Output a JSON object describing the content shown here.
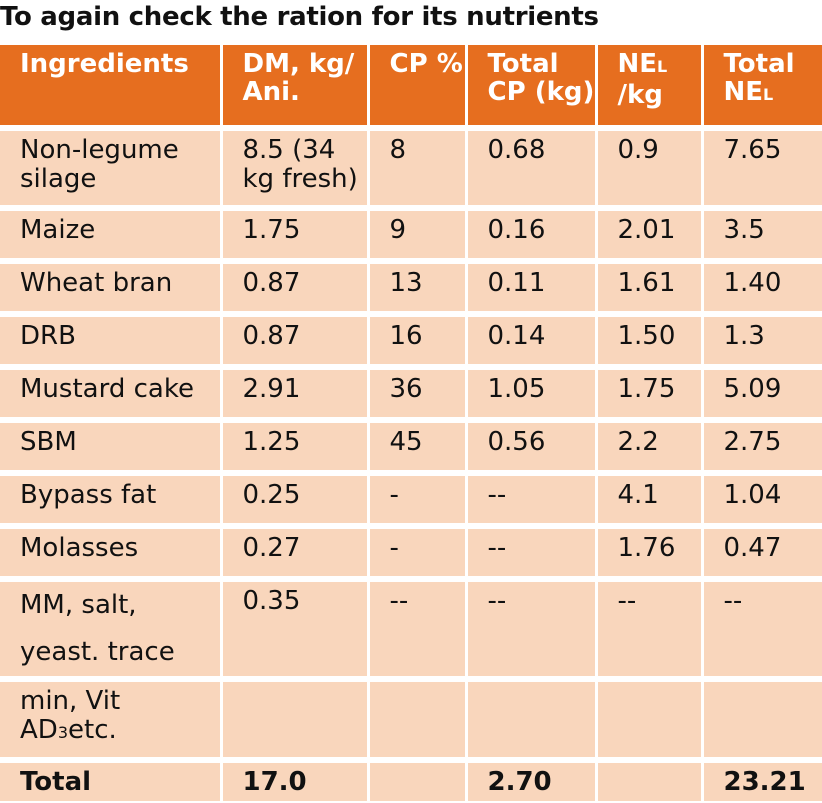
{
  "title": "To again check the ration for its nutrients",
  "headers": [
    {
      "main": "Ingredients",
      "sub": "",
      "tail": ""
    },
    {
      "main": "DM, kg/ Ani.",
      "sub": "",
      "tail": ""
    },
    {
      "main": "CP %",
      "sub": "",
      "tail": ""
    },
    {
      "main": "Total CP (kg)",
      "sub": "",
      "tail": ""
    },
    {
      "main": "NE",
      "sub": "L",
      "tail": " /kg"
    },
    {
      "main": "Total NE",
      "sub": "L",
      "tail": ""
    }
  ],
  "rows": [
    {
      "ingredient": "Non-legume silage",
      "dm": "8.5 (34 kg fresh)",
      "cp_pct": "8",
      "total_cp": "0.68",
      "nel_per_kg": "0.9",
      "total_nel": "7.65"
    },
    {
      "ingredient": "Maize",
      "dm": "1.75",
      "cp_pct": "9",
      "total_cp": "0.16",
      "nel_per_kg": "2.01",
      "total_nel": "3.5"
    },
    {
      "ingredient": "Wheat bran",
      "dm": "0.87",
      "cp_pct": "13",
      "total_cp": "0.11",
      "nel_per_kg": "1.61",
      "total_nel": "1.40"
    },
    {
      "ingredient": "DRB",
      "dm": "0.87",
      "cp_pct": "16",
      "total_cp": "0.14",
      "nel_per_kg": "1.50",
      "total_nel": "1.3"
    },
    {
      "ingredient": "Mustard cake",
      "dm": "2.91",
      "cp_pct": "36",
      "total_cp": "1.05",
      "nel_per_kg": "1.75",
      "total_nel": "5.09"
    },
    {
      "ingredient": "SBM",
      "dm": "1.25",
      "cp_pct": "45",
      "total_cp": "0.56",
      "nel_per_kg": "2.2",
      "total_nel": "2.75"
    },
    {
      "ingredient": "Bypass fat",
      "dm": "0.25",
      "cp_pct": "-",
      "total_cp": "--",
      "nel_per_kg": "4.1",
      "total_nel": "1.04"
    },
    {
      "ingredient": "Molasses",
      "dm": "0.27",
      "cp_pct": "-",
      "total_cp": "--",
      "nel_per_kg": "1.76",
      "total_nel": "0.47"
    },
    {
      "ingredient": "MM, salt, yeast. trace",
      "dm": "0.35",
      "cp_pct": "--",
      "total_cp": "--",
      "nel_per_kg": "--",
      "total_nel": "--"
    }
  ],
  "extra_row": {
    "main": "min, Vit AD",
    "sub": "3",
    "tail": "etc."
  },
  "total": {
    "label": "Total",
    "dm": "17.0",
    "cp_pct": "",
    "total_cp": "2.70",
    "nel_per_kg": "",
    "total_nel": "23.21"
  },
  "colors": {
    "header_bg": "#E66E1F",
    "cell_bg": "#F9D6BC",
    "header_text": "#FFFFFF"
  }
}
